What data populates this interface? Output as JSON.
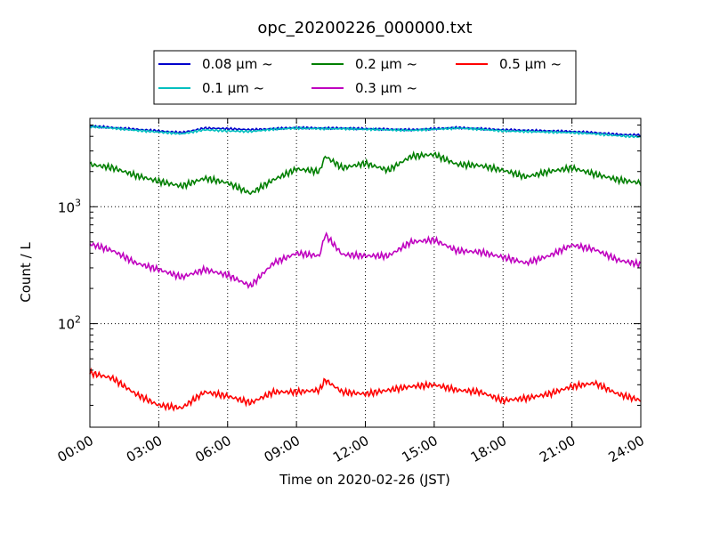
{
  "chart_data": {
    "type": "line",
    "title": "opc_20200226_000000.txt",
    "xlabel": "Time on 2020-02-26 (JST)",
    "ylabel": "Count / L",
    "yscale": "log",
    "ylim": [
      13,
      5700
    ],
    "xlim": [
      "2020-02-26 00:00",
      "2020-02-27 00:00"
    ],
    "grid": true,
    "legend_position": "top",
    "x_ticks": [
      "00:00",
      "03:00",
      "06:00",
      "09:00",
      "12:00",
      "15:00",
      "18:00",
      "21:00",
      "24:00"
    ],
    "y_ticks": [
      {
        "value": 100,
        "label": "10",
        "exp": "2"
      },
      {
        "value": 1000,
        "label": "10",
        "exp": "3"
      }
    ],
    "x": [
      "00:00",
      "01:00",
      "02:00",
      "03:00",
      "04:00",
      "05:00",
      "06:00",
      "07:00",
      "08:00",
      "09:00",
      "10:00",
      "10:15",
      "11:00",
      "12:00",
      "13:00",
      "14:00",
      "15:00",
      "16:00",
      "17:00",
      "18:00",
      "19:00",
      "20:00",
      "21:00",
      "22:00",
      "23:00",
      "24:00"
    ],
    "series": [
      {
        "name": "0.08 μm ~",
        "color": "#0000cc",
        "values": [
          4900,
          4750,
          4600,
          4450,
          4300,
          4700,
          4650,
          4550,
          4650,
          4750,
          4700,
          4700,
          4700,
          4650,
          4600,
          4550,
          4650,
          4750,
          4650,
          4550,
          4500,
          4450,
          4400,
          4300,
          4150,
          4100
        ]
      },
      {
        "name": "0.1 μm ~",
        "color": "#00bfbf",
        "values": [
          4850,
          4700,
          4500,
          4350,
          4200,
          4550,
          4450,
          4400,
          4600,
          4700,
          4650,
          4650,
          4650,
          4600,
          4550,
          4500,
          4600,
          4700,
          4600,
          4450,
          4400,
          4350,
          4300,
          4200,
          4050,
          3950
        ]
      },
      {
        "name": "0.2 μm ~",
        "color": "#007f00",
        "values": [
          2300,
          2150,
          1850,
          1650,
          1500,
          1750,
          1600,
          1300,
          1700,
          2100,
          2000,
          2700,
          2150,
          2350,
          2050,
          2700,
          2800,
          2300,
          2250,
          2050,
          1800,
          2000,
          2150,
          1900,
          1700,
          1600
        ]
      },
      {
        "name": "0.3 μm ~",
        "color": "#bf00bf",
        "values": [
          480,
          420,
          330,
          290,
          250,
          290,
          260,
          210,
          330,
          400,
          380,
          580,
          390,
          380,
          380,
          500,
          520,
          420,
          410,
          370,
          330,
          380,
          470,
          430,
          350,
          320
        ]
      },
      {
        "name": "0.5 μm ~",
        "color": "#ff0000",
        "values": [
          38,
          34,
          25,
          20,
          19,
          26,
          24,
          21,
          26,
          26,
          27,
          33,
          26,
          25,
          27,
          29,
          30,
          27,
          26,
          22,
          23,
          25,
          29,
          31,
          25,
          22
        ]
      }
    ]
  }
}
